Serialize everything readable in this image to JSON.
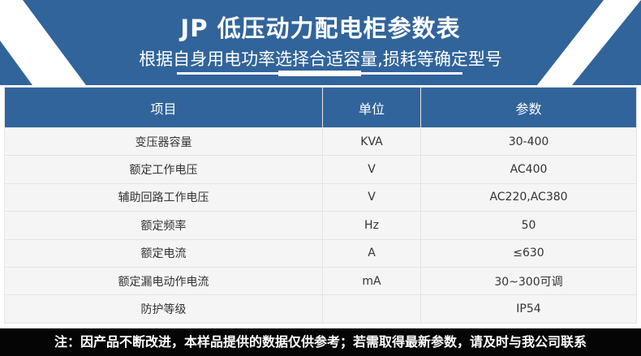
{
  "banner": {
    "title": "JP 低压动力配电柜参数表",
    "subtitle": "根据自身用电功率选择合适容量,损耗等确定型号",
    "colors": {
      "primary": "#31649b",
      "stripe": "#ffffff"
    }
  },
  "table": {
    "headers": [
      "项目",
      "单位",
      "参数"
    ],
    "rows": [
      [
        "变压器容量",
        "KVA",
        "30-400"
      ],
      [
        "额定工作电压",
        "V",
        "AC400"
      ],
      [
        "辅助回路工作电压",
        "V",
        "AC220,AC380"
      ],
      [
        "额定频率",
        "Hz",
        "50"
      ],
      [
        "额定电流",
        "A",
        "≤630"
      ],
      [
        "额定漏电动作电流",
        "mA",
        "30~300可调"
      ],
      [
        "防护等级",
        "",
        "IP54"
      ]
    ]
  },
  "footer": {
    "note": "注：因产品不断改进，本样品提供的数据仅供参考；若需取得最新参数，请及时与我公司联系"
  }
}
